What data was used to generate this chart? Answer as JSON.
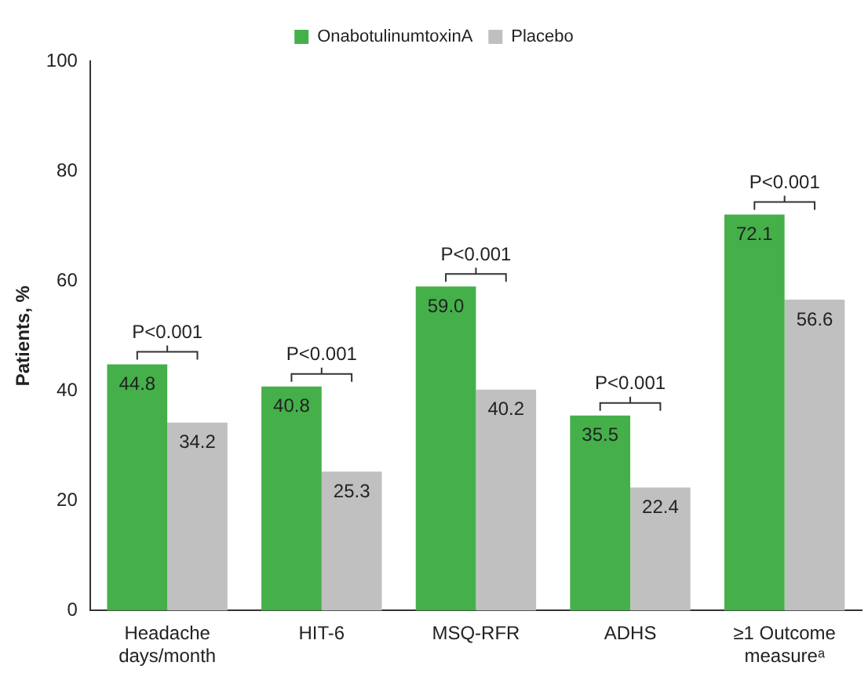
{
  "chart_data": {
    "type": "bar",
    "ylabel": "Patients, %",
    "categories": [
      "Headache days/month",
      "HIT-6",
      "MSQ-RFR",
      "ADHS",
      "≥1 Outcome measureᵃ"
    ],
    "series": [
      {
        "name": "OnabotulinumtoxinA",
        "color": "#45b04a",
        "values": [
          44.8,
          40.8,
          59.0,
          35.5,
          72.1
        ],
        "value_labels": [
          "44.8",
          "40.8",
          "59.0",
          "35.5",
          "72.1"
        ]
      },
      {
        "name": "Placebo",
        "color": "#c0c0c0",
        "values": [
          34.2,
          25.3,
          40.2,
          22.4,
          56.6
        ],
        "value_labels": [
          "34.2",
          "25.3",
          "40.2",
          "22.4",
          "56.6"
        ]
      }
    ],
    "ylim": [
      0,
      100
    ],
    "yticks": [
      0,
      20,
      40,
      60,
      80,
      100
    ],
    "grid": false,
    "legend": "top",
    "annotations": [
      "P<0.001",
      "P<0.001",
      "P<0.001",
      "P<0.001",
      "P<0.001"
    ]
  }
}
